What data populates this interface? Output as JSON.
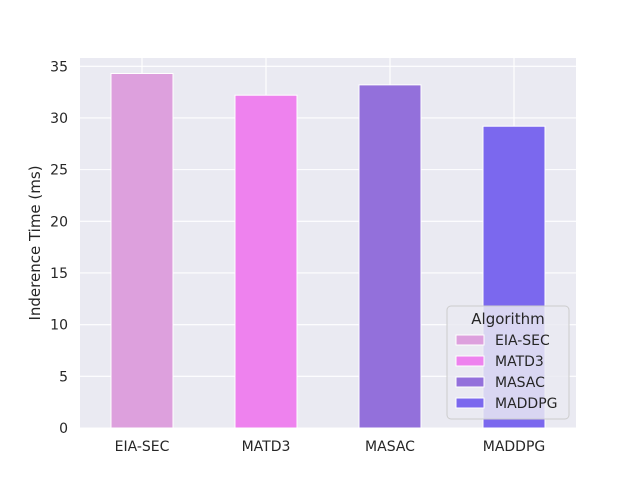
{
  "chart_data": {
    "type": "bar",
    "categories": [
      "EIA-SEC",
      "MATD3",
      "MASAC",
      "MADDPG"
    ],
    "values": [
      34.3,
      32.2,
      33.2,
      29.2
    ],
    "colors": [
      "#dda0dd",
      "#ee82ee",
      "#9370db",
      "#7b68ee"
    ],
    "xlabel": "",
    "ylabel": "Inderence Time (ms)",
    "ylim": [
      0,
      35.8
    ],
    "yticks": [
      0,
      5,
      10,
      15,
      20,
      25,
      30,
      35
    ],
    "grid": true,
    "background": "#eaeaf2",
    "legend": {
      "title": "Algorithm",
      "placement": "lower-right",
      "entries": [
        "EIA-SEC",
        "MATD3",
        "MASAC",
        "MADDPG"
      ]
    }
  }
}
